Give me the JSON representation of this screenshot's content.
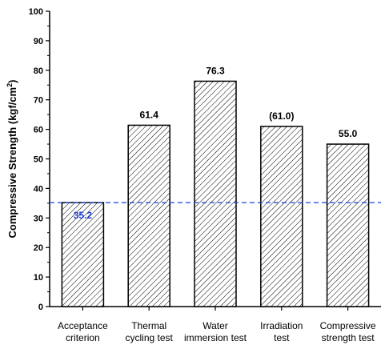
{
  "chart_data": {
    "type": "bar",
    "categories": [
      [
        "Acceptance",
        "criterion"
      ],
      [
        "Thermal",
        "cycling test"
      ],
      [
        "Water",
        "immersion test"
      ],
      [
        "Irradiation",
        "test"
      ],
      [
        "Compressive",
        "strength test"
      ]
    ],
    "values": [
      35.2,
      61.4,
      76.3,
      61.0,
      55.0
    ],
    "data_labels": [
      "35.2",
      "61.4",
      "76.3",
      "(61.0)",
      "55.0"
    ],
    "ylabel": {
      "main": "Compressive Strength (kgf/cm",
      "sup": "2",
      "tail": ")"
    },
    "ylim": [
      0,
      100
    ],
    "yticks": [
      0,
      10,
      20,
      30,
      40,
      50,
      60,
      70,
      80,
      90,
      100
    ],
    "reference_line": {
      "value": 35.2,
      "style": "dashed",
      "color": "#1f3fd6"
    },
    "bar_fill": "hatched",
    "grid": false,
    "first_label_color": "#1f3fd6"
  }
}
